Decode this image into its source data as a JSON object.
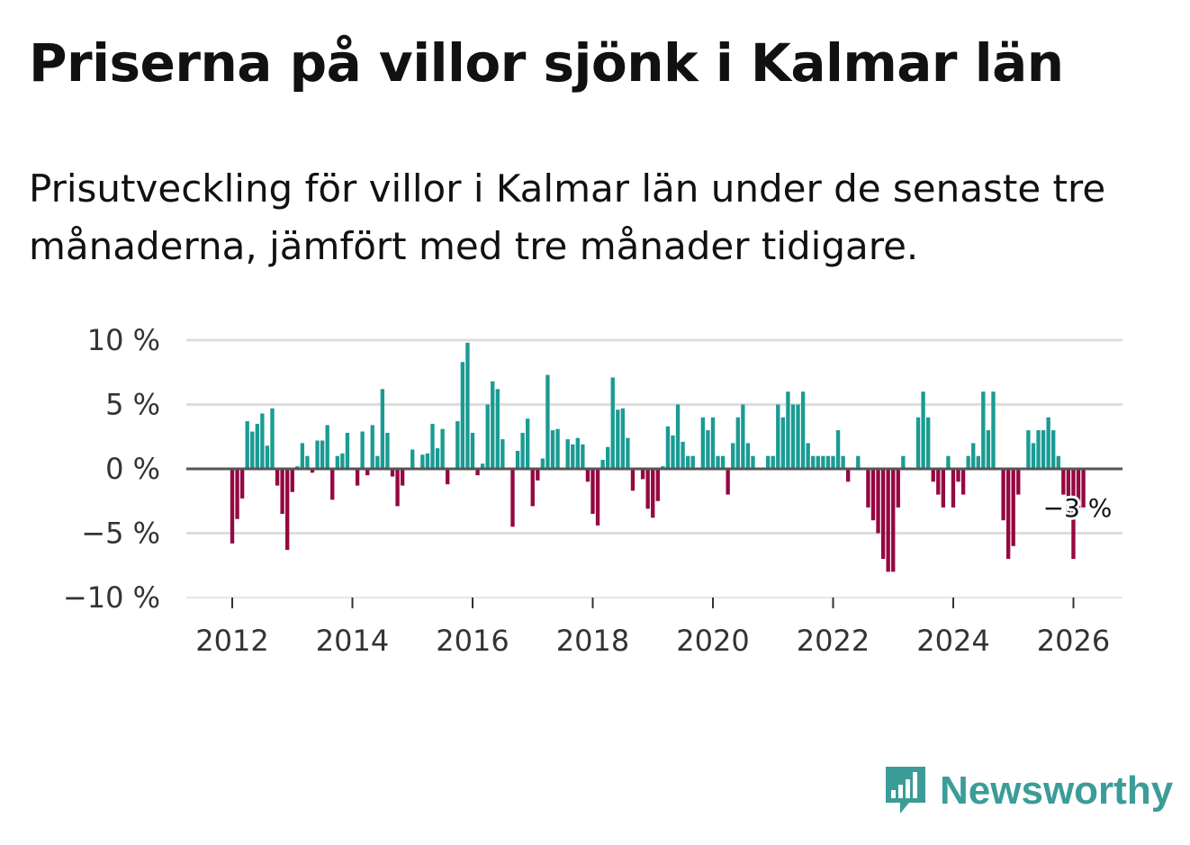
{
  "header": {
    "title": "Priserna på villor sjönk i Kalmar län",
    "subtitle": "Prisutveckling för villor i Kalmar län under de senaste tre månaderna, jämfört med tre månader tidigare."
  },
  "brand": {
    "name": "Newsworthy",
    "color": "#3b9c98",
    "icon": "newsworthy-logo-icon"
  },
  "colors": {
    "positive": "#1a9b93",
    "negative": "#950741",
    "zero_line": "#555555",
    "grid": "#dddddd"
  },
  "chart_data": {
    "type": "bar",
    "title": "Priserna på villor sjönk i Kalmar län",
    "ylim": [
      -10,
      10
    ],
    "yticks": [
      10,
      5,
      0,
      -5,
      -10
    ],
    "ytick_labels": [
      "10 %",
      "5 %",
      "0 %",
      "−5 %",
      "−10 %"
    ],
    "xticks": [
      2012,
      2014,
      2016,
      2018,
      2020,
      2022,
      2024,
      2026
    ],
    "xtick_labels": [
      "2012",
      "2014",
      "2016",
      "2018",
      "2020",
      "2022",
      "2024",
      "2026"
    ],
    "x_start": 2012.0,
    "x_step": 0.08333,
    "values": [
      -5.8,
      -3.9,
      -2.3,
      3.7,
      2.9,
      3.5,
      4.3,
      1.8,
      4.7,
      -1.3,
      -3.5,
      -6.3,
      -1.8,
      0.2,
      2.0,
      1.0,
      -0.3,
      2.2,
      2.2,
      3.4,
      -2.4,
      1.0,
      1.2,
      2.8,
      0,
      -1.3,
      2.9,
      -0.5,
      3.4,
      1.0,
      6.2,
      2.8,
      -0.6,
      -2.9,
      -1.3,
      0,
      1.5,
      0,
      1.1,
      1.2,
      3.5,
      1.6,
      3.1,
      -1.2,
      0,
      3.7,
      8.3,
      9.8,
      2.8,
      -0.5,
      0.4,
      5.0,
      6.8,
      6.2,
      2.3,
      0,
      -4.5,
      1.4,
      2.8,
      3.9,
      -2.9,
      -0.9,
      0.8,
      7.3,
      3.0,
      3.1,
      0,
      2.3,
      1.9,
      2.4,
      1.9,
      -1.0,
      -3.5,
      -4.4,
      0.7,
      1.7,
      7.1,
      4.6,
      4.7,
      2.4,
      -1.7,
      0,
      -0.8,
      -3.1,
      -3.8,
      -2.5,
      0.2,
      3.3,
      2.6,
      5.0,
      2.1,
      1.0,
      1.0,
      0,
      4.0,
      3.0,
      4.0,
      1.0,
      1.0,
      -2.0,
      2.0,
      4.0,
      5.0,
      2.0,
      1.0,
      0,
      0,
      1.0,
      1.0,
      5.0,
      4.0,
      6.0,
      5.0,
      5.0,
      6.0,
      2.0,
      1.0,
      1.0,
      1.0,
      1.0,
      1.0,
      3.0,
      1.0,
      -1.0,
      0,
      1.0,
      0,
      -3.0,
      -4.0,
      -5.0,
      -7.0,
      -8.0,
      -8.0,
      -3.0,
      1.0,
      0,
      0,
      4.0,
      6.0,
      4.0,
      -1.0,
      -2.0,
      -3.0,
      1.0,
      -3.0,
      -1.0,
      -2.0,
      1.0,
      2.0,
      1.0,
      6.0,
      3.0,
      6.0,
      0,
      -4.0,
      -7.0,
      -6.0,
      -2.0,
      0,
      3.0,
      2.0,
      3.0,
      3.0,
      4.0,
      3.0,
      1.0,
      -2.0,
      -3.5,
      -7.0,
      -3.5,
      -3.0
    ],
    "annotation": {
      "label": "−3 %",
      "value": -3.0
    }
  }
}
